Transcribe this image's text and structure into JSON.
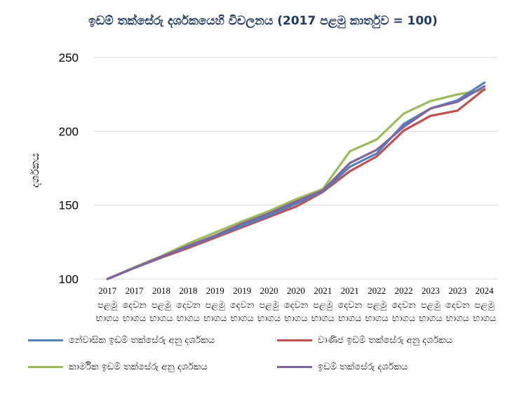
{
  "chart_data": {
    "type": "line",
    "title": "ඉඩම් තක්සේරු දර්ශකයෙහි විචලනය (2017 පළමු කාර්තුව = 100)",
    "ylabel": "දර්ශකය",
    "xlabel": "",
    "ylim": [
      100,
      250
    ],
    "yticks": [
      100,
      150,
      200,
      250
    ],
    "grid": true,
    "legend_position": "bottom",
    "categories": [
      {
        "year": "2017",
        "line1": "පළමු",
        "line2": "භාගය"
      },
      {
        "year": "2017",
        "line1": "දෙවන",
        "line2": "භාගය"
      },
      {
        "year": "2018",
        "line1": "පළමු",
        "line2": "භාගය"
      },
      {
        "year": "2018",
        "line1": "දෙවන",
        "line2": "භාගය"
      },
      {
        "year": "2019",
        "line1": "පළමු",
        "line2": "භාගය"
      },
      {
        "year": "2019",
        "line1": "දෙවන",
        "line2": "භාගය"
      },
      {
        "year": "2020",
        "line1": "පළමු",
        "line2": "භාගය"
      },
      {
        "year": "2020",
        "line1": "දෙවන",
        "line2": "භාගය"
      },
      {
        "year": "2021",
        "line1": "පළමු",
        "line2": "භාගය"
      },
      {
        "year": "2021",
        "line1": "දෙවන",
        "line2": "භාගය"
      },
      {
        "year": "2022",
        "line1": "පළමු",
        "line2": "භාගය"
      },
      {
        "year": "2022",
        "line1": "දෙවන",
        "line2": "භාගය"
      },
      {
        "year": "2023",
        "line1": "පළමු",
        "line2": "භාගය"
      },
      {
        "year": "2023",
        "line1": "දෙවන",
        "line2": "භාගය"
      },
      {
        "year": "2024",
        "line1": "පළමු",
        "line2": "භාගය"
      }
    ],
    "series": [
      {
        "name": "නේවාසික ඉඩම් තක්සේරු අනු දර්ශකය",
        "color": "#4f81bd",
        "values": [
          100,
          107.5,
          115,
          122,
          129,
          136,
          143,
          151,
          159.5,
          176,
          185,
          205,
          215.5,
          221,
          233
        ]
      },
      {
        "name": "වාණිජ ඉඩම් තක්සේරු අනු දර්ශකය",
        "color": "#c0504d",
        "values": [
          100,
          107.5,
          114.5,
          121,
          128,
          135,
          142,
          149,
          159,
          173,
          183,
          200.5,
          210.5,
          214,
          228.5
        ]
      },
      {
        "name": "කාර්මික ඉඩම් තක්සේරු අනු දර්ශකය",
        "color": "#9bbb59",
        "values": [
          100,
          108,
          115.5,
          124,
          131.5,
          139,
          146,
          154,
          161,
          186.5,
          194.5,
          212,
          220.5,
          225,
          228
        ]
      },
      {
        "name": "ඉඩම් තක්සේරු දර්ශකය",
        "color": "#8064a2",
        "values": [
          100,
          107.5,
          115,
          122.5,
          129.5,
          137.5,
          144.5,
          152.5,
          160,
          178.5,
          187.5,
          203,
          215.5,
          220,
          230.5
        ]
      }
    ]
  }
}
